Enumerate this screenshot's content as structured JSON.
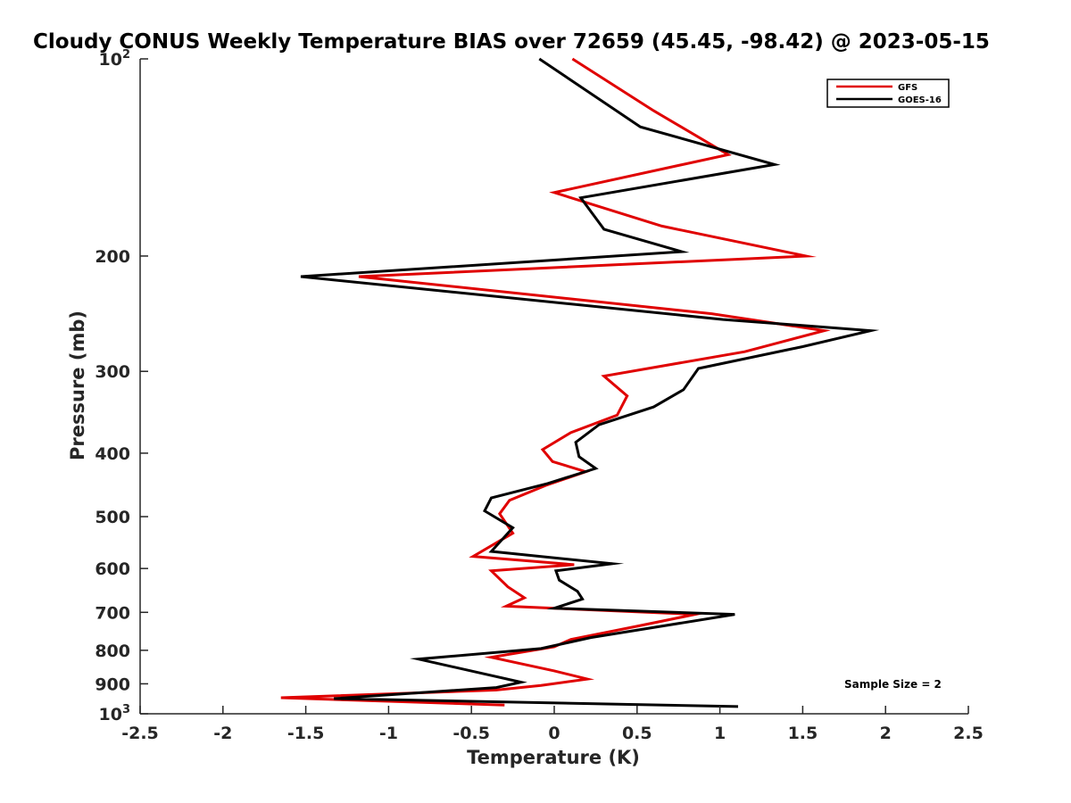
{
  "chart_data": {
    "type": "line",
    "title": "Cloudy CONUS Weekly Temperature BIAS over 72659 (45.45, -98.42) @ 2023-05-15",
    "xlabel": "Temperature (K)",
    "ylabel": "Pressure (mb)",
    "xlim": [
      -2.5,
      2.5
    ],
    "ylim": [
      1000,
      100
    ],
    "y_scale": "log",
    "grid": false,
    "legend_position": "top-right",
    "x_ticks": [
      -2.5,
      -2,
      -1.5,
      -1,
      -0.5,
      0,
      0.5,
      1,
      1.5,
      2,
      2.5
    ],
    "x_tick_labels": [
      "-2.5",
      "-2",
      "-1.5",
      "-1",
      "-0.5",
      "0",
      "0.5",
      "1",
      "1.5",
      "2",
      "2.5"
    ],
    "y_ticks": [
      100,
      200,
      300,
      400,
      500,
      600,
      700,
      800,
      900,
      1000
    ],
    "y_tick_labels": [
      {
        "base": "10",
        "sup": "2"
      },
      {
        "base": "200"
      },
      {
        "base": "300"
      },
      {
        "base": "400"
      },
      {
        "base": "500"
      },
      {
        "base": "600"
      },
      {
        "base": "700"
      },
      {
        "base": "800"
      },
      {
        "base": "900"
      },
      {
        "base": "10",
        "sup": "3"
      }
    ],
    "annotation": "Sample Size = 2",
    "series": [
      {
        "name": "GFS",
        "color": "#e00000",
        "points": [
          [
            0.11,
            100
          ],
          [
            0.6,
            120
          ],
          [
            1.05,
            140
          ],
          [
            0.0,
            160
          ],
          [
            0.65,
            180
          ],
          [
            1.52,
            200
          ],
          [
            -1.18,
            215
          ],
          [
            0.95,
            245
          ],
          [
            1.63,
            260
          ],
          [
            1.15,
            280
          ],
          [
            0.3,
            305
          ],
          [
            0.44,
            327
          ],
          [
            0.38,
            350
          ],
          [
            0.1,
            372
          ],
          [
            -0.07,
            395
          ],
          [
            -0.01,
            412
          ],
          [
            0.19,
            427
          ],
          [
            -0.05,
            448
          ],
          [
            -0.27,
            472
          ],
          [
            -0.33,
            495
          ],
          [
            -0.25,
            530
          ],
          [
            -0.49,
            575
          ],
          [
            0.12,
            592
          ],
          [
            -0.38,
            605
          ],
          [
            -0.28,
            640
          ],
          [
            -0.18,
            665
          ],
          [
            -0.29,
            685
          ],
          [
            0.85,
            705
          ],
          [
            0.5,
            735
          ],
          [
            0.1,
            770
          ],
          [
            0.0,
            790
          ],
          [
            -0.38,
            820
          ],
          [
            0.0,
            860
          ],
          [
            0.2,
            885
          ],
          [
            -0.08,
            905
          ],
          [
            -0.35,
            920
          ],
          [
            -1.65,
            945
          ],
          [
            -0.3,
            970
          ]
        ]
      },
      {
        "name": "GOES-16",
        "color": "#000000",
        "points": [
          [
            -0.09,
            100
          ],
          [
            0.52,
            127
          ],
          [
            1.33,
            145
          ],
          [
            0.16,
            163
          ],
          [
            0.3,
            182
          ],
          [
            0.77,
            197
          ],
          [
            -1.53,
            215
          ],
          [
            1.02,
            250
          ],
          [
            1.91,
            260
          ],
          [
            1.5,
            275
          ],
          [
            0.87,
            297
          ],
          [
            0.78,
            320
          ],
          [
            0.6,
            340
          ],
          [
            0.27,
            362
          ],
          [
            0.13,
            385
          ],
          [
            0.15,
            405
          ],
          [
            0.25,
            422
          ],
          [
            -0.04,
            445
          ],
          [
            -0.38,
            468
          ],
          [
            -0.42,
            490
          ],
          [
            -0.25,
            520
          ],
          [
            -0.38,
            565
          ],
          [
            0.35,
            590
          ],
          [
            0.01,
            605
          ],
          [
            0.03,
            625
          ],
          [
            0.14,
            650
          ],
          [
            0.17,
            668
          ],
          [
            0.0,
            690
          ],
          [
            1.09,
            705
          ],
          [
            0.22,
            765
          ],
          [
            -0.08,
            795
          ],
          [
            -0.82,
            825
          ],
          [
            -0.2,
            895
          ],
          [
            -0.35,
            912
          ],
          [
            -1.33,
            948
          ],
          [
            1.11,
            975
          ]
        ]
      }
    ]
  }
}
